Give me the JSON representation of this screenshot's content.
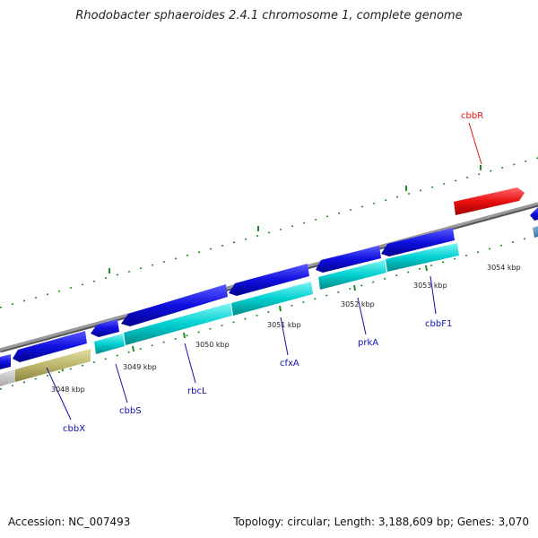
{
  "title": "Rhodobacter sphaeroides 2.4.1 chromosome 1, complete genome",
  "colors": {
    "backbone": "#888888",
    "tick": "#228B22",
    "cds": "#1010E0",
    "cds_highlight": "#E81010",
    "rna": "#00D0D0",
    "pseudo": "#BDB76B",
    "other": "#BBBBBB"
  },
  "ticks": [
    {
      "label": "3048 kbp"
    },
    {
      "label": "3049 kbp"
    },
    {
      "label": "3050 kbp"
    },
    {
      "label": "3051 kbp"
    },
    {
      "label": "3052 kbp"
    },
    {
      "label": "3053 kbp"
    },
    {
      "label": "3054 kbp"
    }
  ],
  "gene_labels": [
    {
      "name": "cbbR",
      "color": "#E81010"
    },
    {
      "name": "cbbX",
      "color": "#1010B0"
    },
    {
      "name": "cbbS",
      "color": "#1010B0"
    },
    {
      "name": "rbcL",
      "color": "#1010B0"
    },
    {
      "name": "cfxA",
      "color": "#1010B0"
    },
    {
      "name": "prkA",
      "color": "#1010B0"
    },
    {
      "name": "cbbF1",
      "color": "#1010B0"
    }
  ],
  "footer": {
    "accession": "Accession: NC_007493",
    "summary": "Topology: circular; Length: 3,188,609 bp; Genes: 3,070"
  }
}
